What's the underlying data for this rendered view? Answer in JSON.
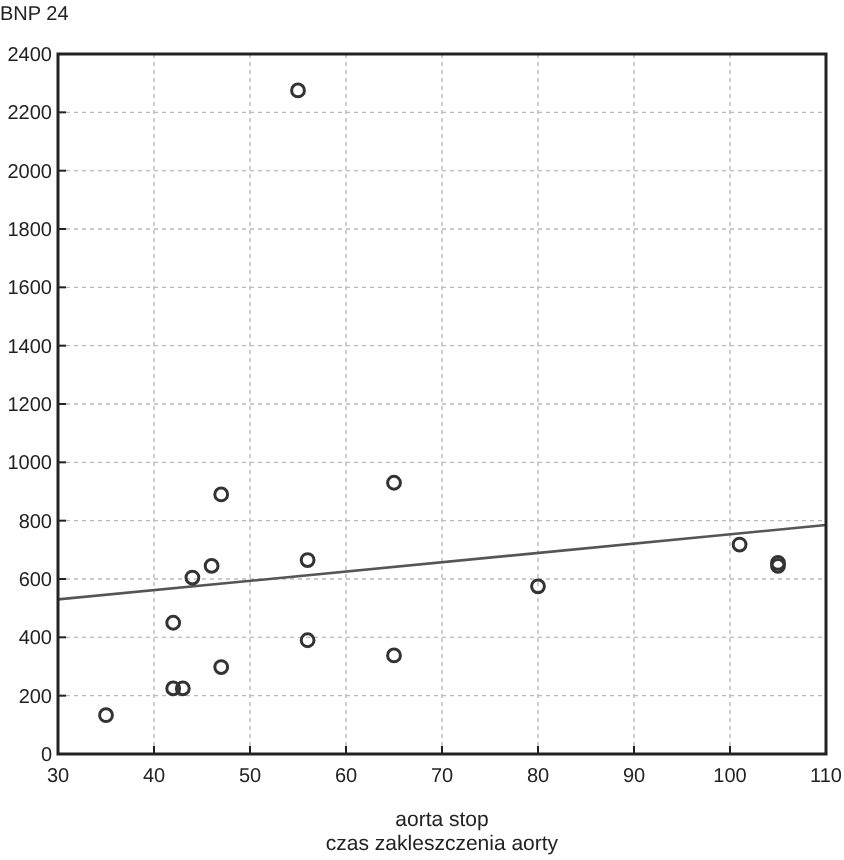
{
  "chart_data": {
    "type": "scatter",
    "ylabel": "BNP 24",
    "xlabel": "aorta stop\nczas zakleszczenia aorty",
    "xlim": [
      30,
      110
    ],
    "xticks": [
      30,
      40,
      50,
      60,
      70,
      80,
      90,
      100,
      110
    ],
    "ylim": [
      0,
      2400
    ],
    "yticks": [
      0,
      200,
      400,
      600,
      800,
      1000,
      1200,
      1400,
      1600,
      1800,
      2000,
      2200,
      2400
    ],
    "grid": true,
    "series": [
      {
        "color": "#333333",
        "marker": "circle",
        "x": [
          35,
          42,
          43,
          42,
          44,
          46,
          47,
          47,
          55,
          56,
          56,
          65,
          65,
          80,
          101,
          105,
          105
        ],
        "values": [
          133,
          225,
          225,
          450,
          605,
          645,
          890,
          298,
          2275,
          665,
          390,
          930,
          338,
          575,
          718,
          655,
          645
        ]
      },
      {
        "type": "line",
        "color": "#555555",
        "marker": "none",
        "line_style": "solid",
        "x": [
          30,
          110
        ],
        "values": [
          530,
          785
        ]
      }
    ]
  }
}
